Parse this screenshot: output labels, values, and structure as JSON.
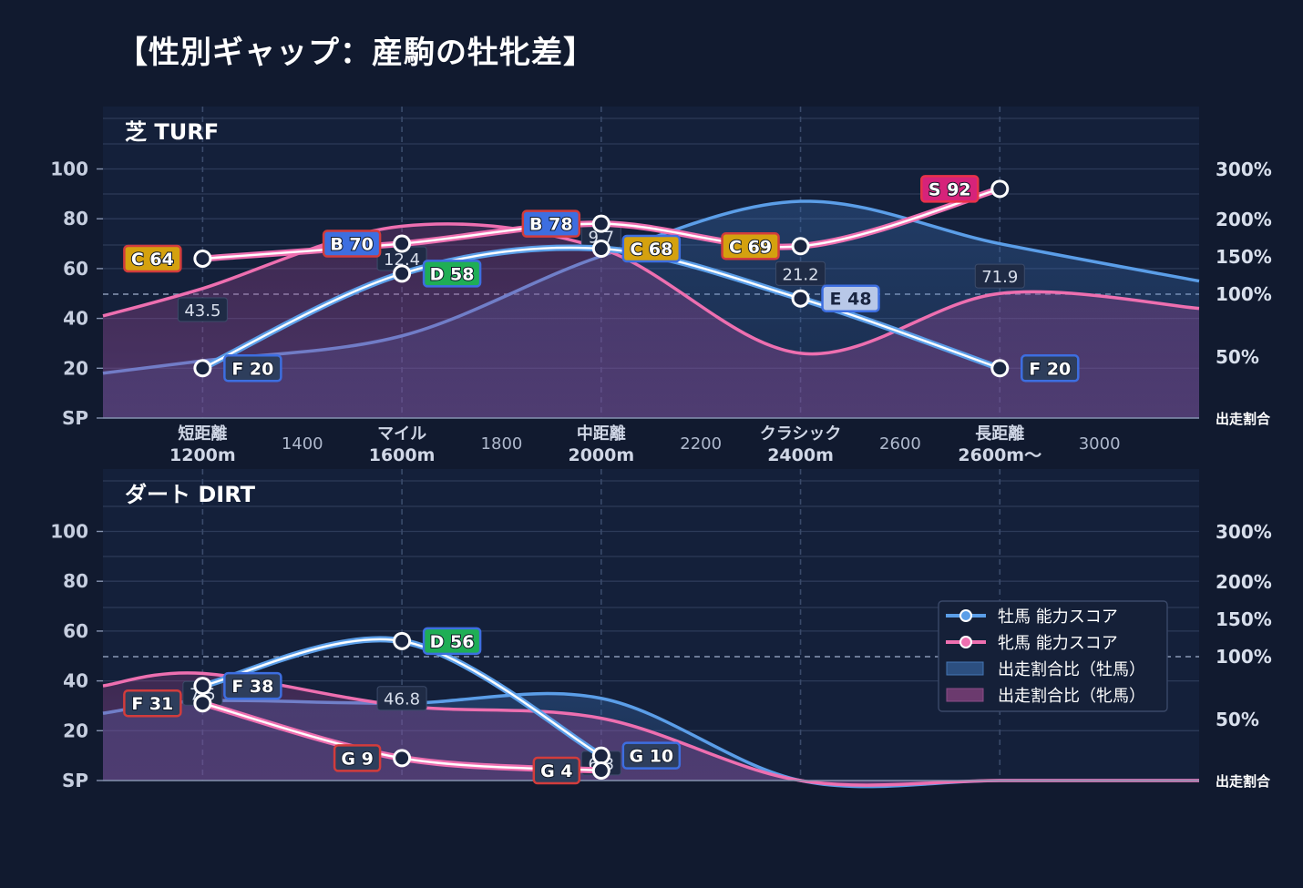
{
  "title": "【性別ギャップ：産駒の牡牝差】",
  "colors": {
    "background": "#111a2f",
    "male": "#5b9ee8",
    "female": "#ee6fb0",
    "grade_S": "#d6237a",
    "grade_A": "#d64a4a",
    "grade_B": "#3d6ee0",
    "grade_C": "#d4a10f",
    "grade_D": "#1fae55",
    "grade_E": "#b8c8e8",
    "grade_F": "#2e3e5c",
    "grade_G": "#2e3e5c"
  },
  "chart_data": [
    {
      "type": "line",
      "panel_label": "芝 TURF",
      "y_axis_left": {
        "ticks": [
          "SP",
          "20",
          "40",
          "60",
          "80",
          "100"
        ],
        "ylim": [
          0,
          100
        ]
      },
      "y_axis_right": {
        "ticks": [
          "50%",
          "100%",
          "150%",
          "200%",
          "300%"
        ],
        "label": "出走割合"
      },
      "x_axis": {
        "range": [
          1000,
          3200
        ],
        "categories": [
          {
            "x": 1200,
            "label_line1": "短距離",
            "label_line2": "1200m"
          },
          {
            "x": 1600,
            "label_line1": "マイル",
            "label_line2": "1600m"
          },
          {
            "x": 2000,
            "label_line1": "中距離",
            "label_line2": "2000m"
          },
          {
            "x": 2400,
            "label_line1": "クラシック",
            "label_line2": "2400m"
          },
          {
            "x": 2800,
            "label_line1": "長距離",
            "label_line2": "2600m〜"
          }
        ],
        "numeric_ticks": [
          {
            "x": 1400,
            "label": "1400"
          },
          {
            "x": 1800,
            "label": "1800"
          },
          {
            "x": 2200,
            "label": "2200"
          },
          {
            "x": 2600,
            "label": "2600"
          },
          {
            "x": 3000,
            "label": "3000"
          }
        ]
      },
      "series": [
        {
          "name": "牡馬 能力スコア",
          "sex": "male",
          "points": [
            {
              "x": 1200,
              "score": 20,
              "grade": "F",
              "label": "F 20"
            },
            {
              "x": 1600,
              "score": 58,
              "grade": "D",
              "label": "D 58"
            },
            {
              "x": 2000,
              "score": 68,
              "grade": "C",
              "label": "C 68"
            },
            {
              "x": 2400,
              "score": 48,
              "grade": "E",
              "label": "E 48"
            },
            {
              "x": 2800,
              "score": 20,
              "grade": "F",
              "label": "F 20"
            }
          ]
        },
        {
          "name": "牝馬 能力スコア",
          "sex": "female",
          "points": [
            {
              "x": 1200,
              "score": 64,
              "grade": "C",
              "label": "C 64"
            },
            {
              "x": 1600,
              "score": 70,
              "grade": "B",
              "label": "B 70"
            },
            {
              "x": 2000,
              "score": 78,
              "grade": "B",
              "label": "B 78"
            },
            {
              "x": 2400,
              "score": 69,
              "grade": "C",
              "label": "C 69"
            },
            {
              "x": 2800,
              "score": 92,
              "grade": "S",
              "label": "S 92"
            }
          ]
        }
      ],
      "ratio_areas": [
        {
          "name": "出走割合比（牡馬）",
          "sex": "male",
          "points": [
            [
              1000,
              18
            ],
            [
              1200,
              23
            ],
            [
              1600,
              33
            ],
            [
              2000,
              65
            ],
            [
              2400,
              87
            ],
            [
              2800,
              70
            ],
            [
              3200,
              55
            ]
          ]
        },
        {
          "name": "出走割合比（牝馬）",
          "sex": "female",
          "points": [
            [
              1000,
              41
            ],
            [
              1200,
              52
            ],
            [
              1600,
              77
            ],
            [
              2000,
              68
            ],
            [
              2400,
              26
            ],
            [
              2800,
              50
            ],
            [
              3200,
              44
            ]
          ]
        }
      ],
      "ratio_labels": [
        {
          "x": 1200,
          "score": 43.5,
          "text": "43.5"
        },
        {
          "x": 1600,
          "score": 64,
          "text": "12.4"
        },
        {
          "x": 2000,
          "score": 73,
          "text": "9.7"
        },
        {
          "x": 2400,
          "score": 58,
          "text": "21.2"
        },
        {
          "x": 2800,
          "score": 57,
          "text": "71.9"
        }
      ]
    },
    {
      "type": "line",
      "panel_label": "ダート DIRT",
      "y_axis_left": {
        "ticks": [
          "SP",
          "20",
          "40",
          "60",
          "80",
          "100"
        ],
        "ylim": [
          0,
          100
        ]
      },
      "y_axis_right": {
        "ticks": [
          "50%",
          "100%",
          "150%",
          "200%",
          "300%"
        ],
        "label": "出走割合"
      },
      "x_axis": {
        "range": [
          1000,
          3200
        ]
      },
      "series": [
        {
          "name": "牡馬 能力スコア",
          "sex": "male",
          "points": [
            {
              "x": 1200,
              "score": 38,
              "grade": "F",
              "label": "F 38"
            },
            {
              "x": 1600,
              "score": 56,
              "grade": "D",
              "label": "D 56"
            },
            {
              "x": 2000,
              "score": 10,
              "grade": "G",
              "label": "G 10"
            }
          ]
        },
        {
          "name": "牝馬 能力スコア",
          "sex": "female",
          "points": [
            {
              "x": 1200,
              "score": 31,
              "grade": "F",
              "label": "F 31"
            },
            {
              "x": 1600,
              "score": 9,
              "grade": "G",
              "label": "G 9"
            },
            {
              "x": 2000,
              "score": 4,
              "grade": "G",
              "label": "G 4"
            }
          ]
        }
      ],
      "ratio_areas": [
        {
          "name": "出走割合比（牡馬）",
          "sex": "male",
          "points": [
            [
              1000,
              27
            ],
            [
              1200,
              32
            ],
            [
              1600,
              31
            ],
            [
              2000,
              33
            ],
            [
              2400,
              0
            ],
            [
              2800,
              0
            ],
            [
              3200,
              0
            ]
          ]
        },
        {
          "name": "出走割合比（牝馬）",
          "sex": "female",
          "points": [
            [
              1000,
              38
            ],
            [
              1200,
              43
            ],
            [
              1600,
              30
            ],
            [
              2000,
              25
            ],
            [
              2400,
              0
            ],
            [
              2800,
              0
            ],
            [
              3200,
              0
            ]
          ]
        }
      ],
      "ratio_labels": [
        {
          "x": 1200,
          "score": 35,
          "text": "7.5"
        },
        {
          "x": 1600,
          "score": 33,
          "text": "46.8"
        },
        {
          "x": 2000,
          "score": 7,
          "text": "6.3"
        }
      ]
    }
  ],
  "legend": {
    "position": "right",
    "items": [
      {
        "label": "牡馬 能力スコア",
        "kind": "line",
        "sex": "male"
      },
      {
        "label": "牝馬 能力スコア",
        "kind": "line",
        "sex": "female"
      },
      {
        "label": "出走割合比（牡馬）",
        "kind": "area",
        "sex": "male"
      },
      {
        "label": "出走割合比（牝馬）",
        "kind": "area",
        "sex": "female"
      }
    ]
  }
}
